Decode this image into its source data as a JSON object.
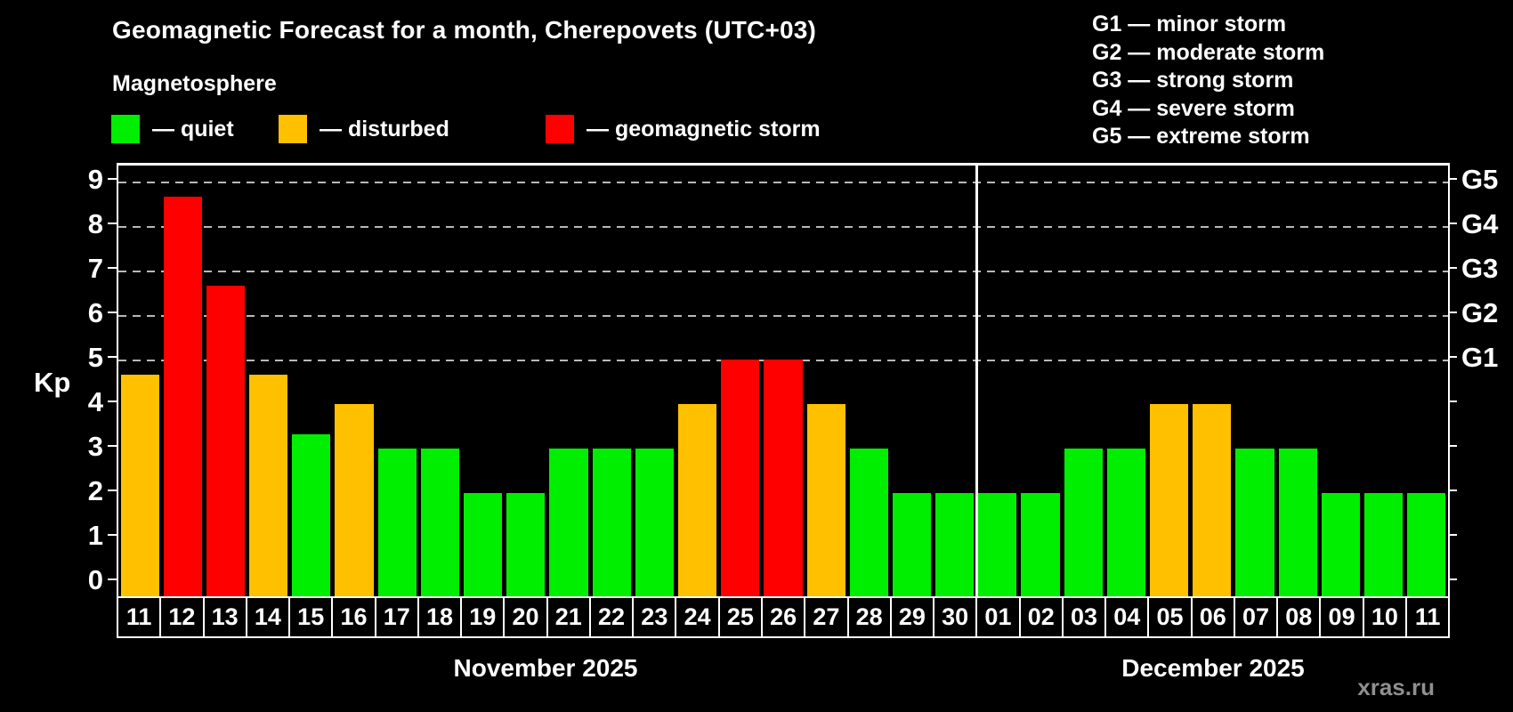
{
  "title": "Geomagnetic Forecast for a month, Cherepovets (UTC+03)",
  "subtitle": "Magnetosphere",
  "legend": {
    "items": [
      {
        "key": "quiet",
        "label": "— quiet"
      },
      {
        "key": "disturbed",
        "label": "— disturbed"
      },
      {
        "key": "storm",
        "label": "— geomagnetic storm"
      }
    ]
  },
  "g_legend": {
    "items": [
      "G1 — minor storm",
      "G2 — moderate storm",
      "G3 — strong storm",
      "G4 — severe storm",
      "G5 — extreme storm"
    ]
  },
  "y_axis": {
    "label": "Kp",
    "ticks": [
      0,
      1,
      2,
      3,
      4,
      5,
      6,
      7,
      8,
      9
    ]
  },
  "right_axis": {
    "ticks": [
      0,
      1,
      2,
      3,
      4,
      5,
      6,
      7,
      8,
      9
    ],
    "labels": [
      {
        "kp": 5,
        "text": "G1"
      },
      {
        "kp": 6,
        "text": "G2"
      },
      {
        "kp": 7,
        "text": "G3"
      },
      {
        "kp": 8,
        "text": "G4"
      },
      {
        "kp": 9,
        "text": "G5"
      }
    ]
  },
  "months": [
    {
      "name": "November 2025",
      "days": 20
    },
    {
      "name": "December 2025",
      "days": 11
    }
  ],
  "watermark": "xras.ru",
  "colors": {
    "quiet": "#00ee00",
    "disturbed": "#ffc000",
    "storm": "#ff0000",
    "grid": "#b8b8b8",
    "background": "#000000",
    "text": "#ffffff"
  },
  "chart_data": {
    "type": "bar",
    "title": "Geomagnetic Forecast for a month, Cherepovets (UTC+03)",
    "xlabel": "",
    "ylabel": "Kp",
    "ylim": [
      0,
      9.35
    ],
    "grid_kp": [
      5,
      6,
      7,
      8,
      9
    ],
    "legend_position": "top-left",
    "categories": [
      "11",
      "12",
      "13",
      "14",
      "15",
      "16",
      "17",
      "18",
      "19",
      "20",
      "21",
      "22",
      "23",
      "24",
      "25",
      "26",
      "27",
      "28",
      "29",
      "30",
      "01",
      "02",
      "03",
      "04",
      "05",
      "06",
      "07",
      "08",
      "09",
      "10",
      "11"
    ],
    "values": [
      4.67,
      8.67,
      6.67,
      4.67,
      3.33,
      4,
      3,
      3,
      2,
      2,
      3,
      3,
      3,
      4,
      5,
      5,
      4,
      3,
      2,
      2,
      2,
      2,
      3,
      3,
      4,
      4,
      3,
      3,
      2,
      2,
      2
    ],
    "status": [
      "disturbed",
      "storm",
      "storm",
      "disturbed",
      "quiet",
      "disturbed",
      "quiet",
      "quiet",
      "quiet",
      "quiet",
      "quiet",
      "quiet",
      "quiet",
      "disturbed",
      "storm",
      "storm",
      "disturbed",
      "quiet",
      "quiet",
      "quiet",
      "quiet",
      "quiet",
      "quiet",
      "quiet",
      "disturbed",
      "disturbed",
      "quiet",
      "quiet",
      "quiet",
      "quiet",
      "quiet"
    ],
    "month_split_index": 20
  }
}
